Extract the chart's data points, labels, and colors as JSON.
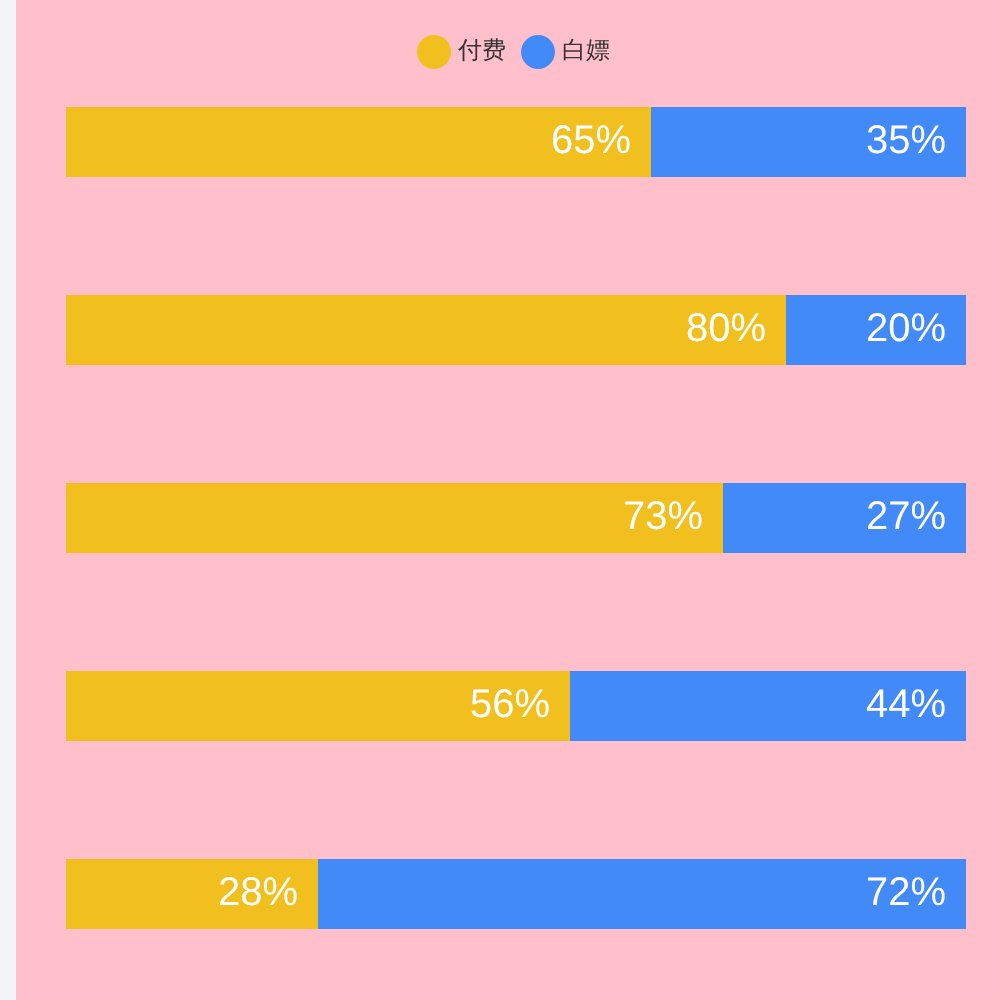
{
  "chart_data": {
    "type": "bar",
    "orientation": "horizontal",
    "stacked": true,
    "categories": [
      null,
      null,
      null,
      null,
      null
    ],
    "series": [
      {
        "name": "付费",
        "color": "#f1c01f",
        "values": [
          65,
          80,
          73,
          56,
          28
        ],
        "value_labels": [
          "65%",
          "80%",
          "73%",
          "56%",
          "28%"
        ]
      },
      {
        "name": "白嫖",
        "color": "#418af8",
        "values": [
          35,
          20,
          27,
          44,
          72
        ],
        "value_labels": [
          "35%",
          "20%",
          "27%",
          "44%",
          "72%"
        ]
      }
    ],
    "xlim": [
      0,
      100
    ],
    "legend": "top",
    "grid": false,
    "tick_labels": false
  }
}
